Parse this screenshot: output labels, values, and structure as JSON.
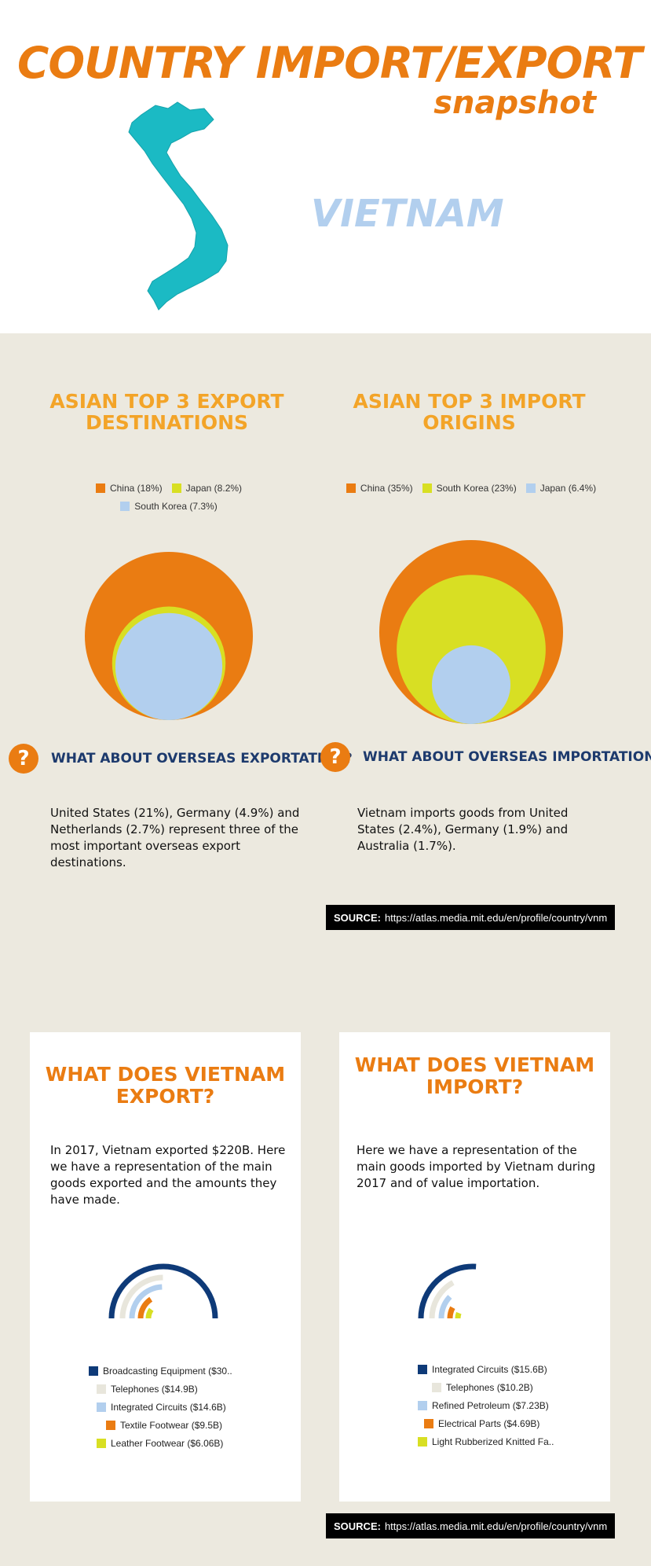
{
  "header": {
    "title": "COUNTRY IMPORT/EXPORT",
    "subtitle": "snapshot",
    "country": "VIETNAM"
  },
  "colors": {
    "orange": "#EA7C12",
    "lime": "#D8DF23",
    "light_blue": "#B2CFEE",
    "navy": "#0E3A78",
    "beige": "#ECE9DF",
    "map_teal": "#1BBAC4"
  },
  "top3": {
    "export_title": "ASIAN TOP 3 EXPORT DESTINATIONS",
    "import_title": "ASIAN TOP 3 IMPORT ORIGINS"
  },
  "overseas": {
    "export_question": "WHAT ABOUT OVERSEAS EXPORTATION?",
    "export_text": "United States (21%), Germany (4.9%) and Netherlands (2.7%) represent three of the most important overseas export destinations.",
    "import_question": "WHAT ABOUT OVERSEAS IMPORTATION?",
    "import_text": "Vietnam imports goods from United States (2.4%), Germany (1.9%) and Australia (1.7%)."
  },
  "source": {
    "label": "SOURCE:",
    "url": "https://atlas.media.mit.edu/en/profile/country/vnm"
  },
  "goods": {
    "export_title": "WHAT DOES VIETNAM EXPORT?",
    "export_text": "In 2017, Vietnam exported $220B.  Here we have a representation of the main goods exported and the amounts they have made.",
    "import_title": "WHAT DOES VIETNAM IMPORT?",
    "import_text": "Here we have a representation of the main goods imported by Vietnam during 2017 and of value importation."
  },
  "chart_data": [
    {
      "type": "pie",
      "style": "nested circles",
      "legend": [
        "China (18%)",
        "Japan (8.2%)",
        "South Korea (7.3%)"
      ],
      "series": [
        {
          "name": "China",
          "value": 18,
          "color": "#EA7C12"
        },
        {
          "name": "Japan",
          "value": 8.2,
          "color": "#D8DF23"
        },
        {
          "name": "South Korea",
          "value": 7.3,
          "color": "#B2CFEE"
        }
      ]
    },
    {
      "type": "pie",
      "style": "nested circles",
      "legend": [
        "China (35%)",
        "South Korea (23%)",
        "Japan (6.4%)"
      ],
      "series": [
        {
          "name": "China",
          "value": 35,
          "color": "#EA7C12"
        },
        {
          "name": "South Korea",
          "value": 23,
          "color": "#D8DF23"
        },
        {
          "name": "Japan",
          "value": 6.4,
          "color": "#B2CFEE"
        }
      ]
    },
    {
      "type": "bar",
      "style": "radial bars",
      "max": 30,
      "legend": [
        "Broadcasting Equipment ($30..",
        "Telephones ($14.9B)",
        "Integrated Circuits ($14.6B)",
        "Textile Footwear ($9.5B)",
        "Leather Footwear ($6.06B)"
      ],
      "series": [
        {
          "name": "Broadcasting Equipment",
          "value": 30,
          "color": "#0E3A78"
        },
        {
          "name": "Telephones",
          "value": 14.9,
          "color": "#E8E6DC"
        },
        {
          "name": "Integrated Circuits",
          "value": 14.6,
          "color": "#B2CFEE"
        },
        {
          "name": "Textile Footwear",
          "value": 9.5,
          "color": "#EA7C12"
        },
        {
          "name": "Leather Footwear",
          "value": 6.06,
          "color": "#D8DF23"
        }
      ]
    },
    {
      "type": "bar",
      "style": "radial bars",
      "max": 30,
      "legend": [
        "Integrated Circuits ($15.6B)",
        "Telephones ($10.2B)",
        "Refined Petroleum ($7.23B)",
        "Electrical Parts ($4.69B)",
        "Light Rubberized Knitted Fa.."
      ],
      "series": [
        {
          "name": "Integrated Circuits",
          "value": 15.6,
          "color": "#0E3A78"
        },
        {
          "name": "Telephones",
          "value": 10.2,
          "color": "#E8E6DC"
        },
        {
          "name": "Refined Petroleum",
          "value": 7.23,
          "color": "#B2CFEE"
        },
        {
          "name": "Electrical Parts",
          "value": 4.69,
          "color": "#EA7C12"
        },
        {
          "name": "Light Rubberized Knitted Fabric",
          "value": 3.5,
          "color": "#D8DF23"
        }
      ]
    }
  ]
}
